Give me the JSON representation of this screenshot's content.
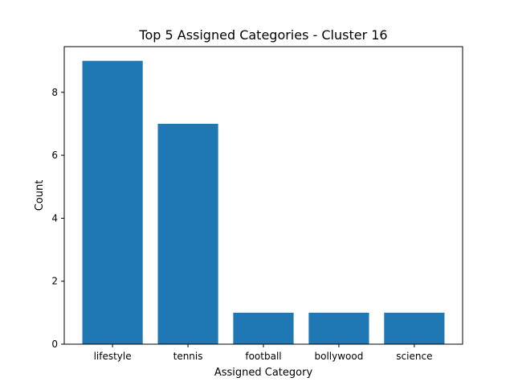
{
  "chart_data": {
    "type": "bar",
    "title": "Top 5 Assigned Categories - Cluster 16",
    "xlabel": "Assigned Category",
    "ylabel": "Count",
    "categories": [
      "lifestyle",
      "tennis",
      "football",
      "bollywood",
      "science"
    ],
    "values": [
      9,
      7,
      1,
      1,
      1
    ],
    "ylim": [
      0,
      9.45
    ],
    "yticks": [
      "0",
      "2",
      "4",
      "6",
      "8"
    ],
    "bar_color": "#1f77b4",
    "grid": false,
    "legend": "none"
  }
}
